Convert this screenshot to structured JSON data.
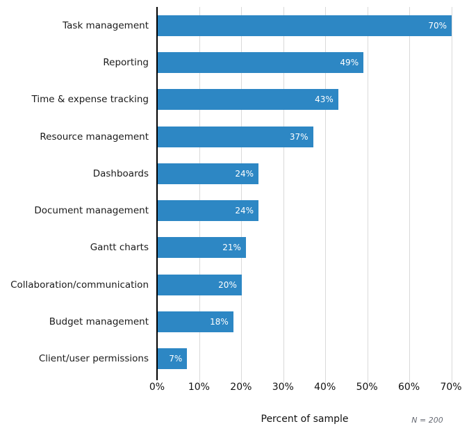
{
  "chart_data": {
    "type": "bar",
    "orientation": "horizontal",
    "title": "",
    "categories": [
      "Task management",
      "Reporting",
      "Time & expense tracking",
      "Resource management",
      "Dashboards",
      "Document management",
      "Gantt charts",
      "Collaboration/communication",
      "Budget management",
      "Client/user permissions"
    ],
    "values": [
      70,
      49,
      43,
      37,
      24,
      24,
      21,
      20,
      18,
      7
    ],
    "value_label_suffix": "%",
    "xlabel": "Percent of sample",
    "x_ticks": [
      "0%",
      "10%",
      "20%",
      "30%",
      "40%",
      "50%",
      "60%",
      "70%"
    ],
    "xlim": [
      0,
      70
    ],
    "note": "N = 200",
    "bar_color": "#2d87c4",
    "gridline_color": "#d9d9d9",
    "axis_color": "#000000",
    "grid": true,
    "legend_position": "none"
  }
}
